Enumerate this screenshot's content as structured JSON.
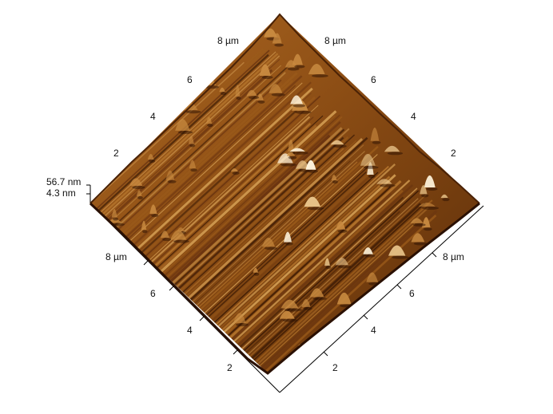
{
  "z_scale": {
    "max_label": "56.7 nm",
    "min_label": "4.3 nm"
  },
  "top_left_axis": {
    "unit_label": "8 µm",
    "ticks": [
      "6",
      "4",
      "2"
    ]
  },
  "top_right_axis": {
    "unit_label": "8 µm",
    "ticks": [
      "6",
      "4",
      "2"
    ]
  },
  "bottom_left_axis": {
    "unit_label": "8 µm",
    "ticks": [
      "6",
      "4",
      "2"
    ]
  },
  "bottom_right_axis": {
    "unit_label": "8 µm",
    "ticks": [
      "6",
      "4",
      "2"
    ]
  },
  "colors": {
    "surface_dark": "#3a1a05",
    "surface_mid": "#9a5a1a",
    "surface_light": "#e8c48a",
    "peak": "#fff4dc"
  }
}
